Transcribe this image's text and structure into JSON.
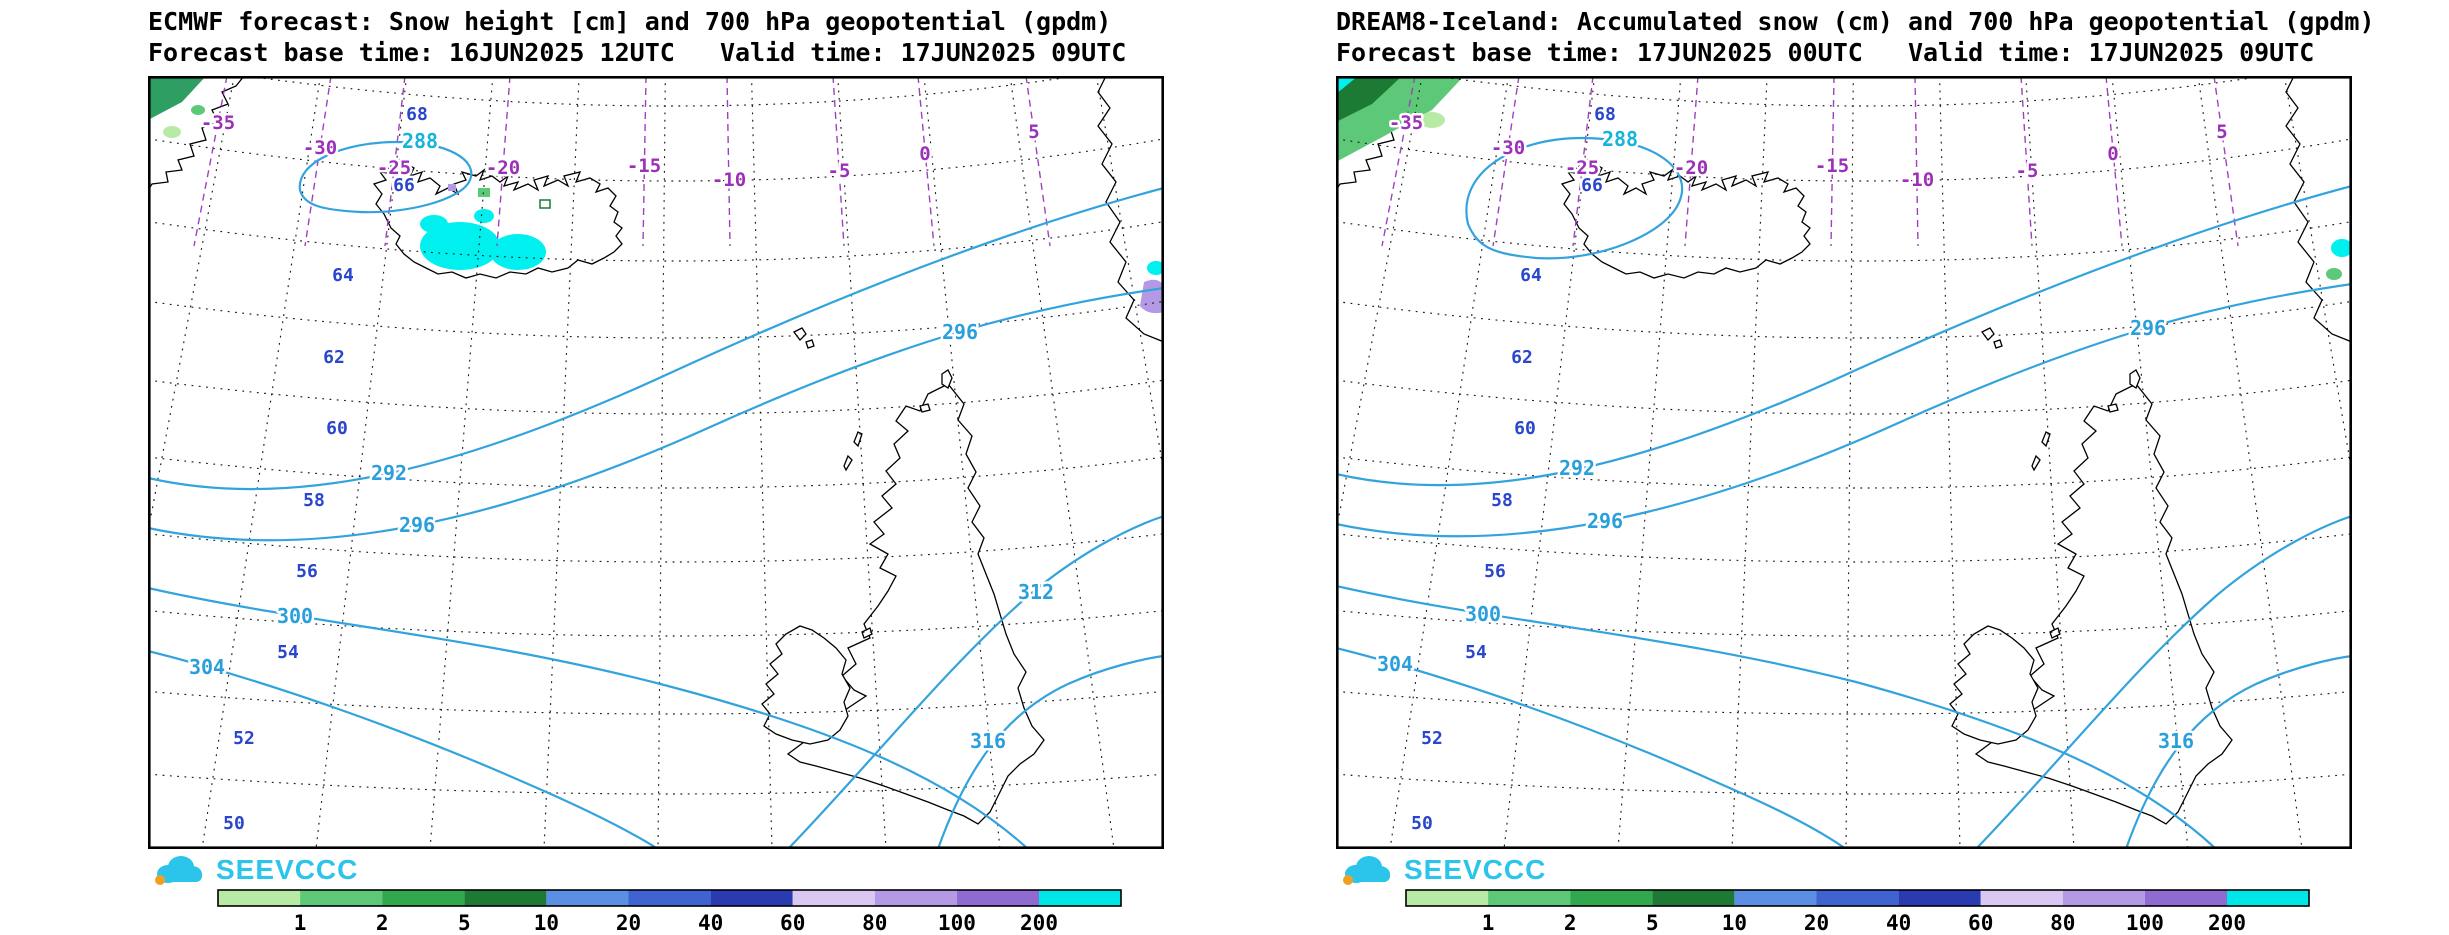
{
  "panels": [
    {
      "title": "ECMWF forecast: Snow height [cm] and 700 hPa geopotential (gpdm)",
      "subtitle": "Forecast base time: 16JUN2025 12UTC   Valid time: 17JUN2025 09UTC"
    },
    {
      "title": "DREAM8-Iceland: Accumulated snow (cm) and 700 hPa geopotential (gpdm)",
      "subtitle": "Forecast base time: 17JUN2025 00UTC   Valid time: 17JUN2025 09UTC"
    }
  ],
  "logo": {
    "text": "SEEVCCC"
  },
  "map_labels": {
    "latitudes": [
      "68",
      "66",
      "64",
      "62",
      "60",
      "58",
      "56",
      "54",
      "52",
      "50"
    ],
    "isotherms": [
      "-35",
      "-30",
      "-25",
      "-20",
      "-15",
      "-10",
      "-5",
      "0",
      "5"
    ],
    "geopotential_left": [
      "288",
      "292",
      "296",
      "296",
      "300",
      "304",
      "312",
      "316"
    ],
    "geopotential_right": [
      "288",
      "292",
      "296",
      "296",
      "300",
      "304",
      "316"
    ]
  },
  "colorbar": {
    "tick_labels": [
      "1",
      "2",
      "5",
      "10",
      "20",
      "40",
      "60",
      "80",
      "100",
      "200"
    ],
    "colors": [
      "#b7eba5",
      "#5dc877",
      "#31a84e",
      "#1d7a35",
      "#5b8fe4",
      "#3f63d1",
      "#2a3ab0",
      "#d9c9f2",
      "#b49ae4",
      "#8e6ad1",
      "#00e5e5"
    ]
  },
  "colors": {
    "contour_blue": "#33a3dd",
    "latitude_label_blue": "#2946cc",
    "isotherm_purple": "#9c30b8",
    "snow_cyan": "#00f0f0",
    "logo_cyan": "#2bc4ea"
  },
  "chart_data": [
    {
      "type": "contour-map",
      "title": "ECMWF forecast: Snow height [cm] and 700 hPa geopotential (gpdm)",
      "region": "North Atlantic: Greenland, Iceland, British Isles, Norway",
      "geopotential_700hPa_gpdm": [
        288,
        292,
        296,
        300,
        304,
        312,
        316
      ],
      "isotherm_labels": [
        -35,
        -30,
        -25,
        -20,
        -15,
        -10,
        -5,
        0,
        5
      ],
      "latitude_lines_degN": [
        68,
        66,
        64,
        62,
        60,
        58,
        56,
        54,
        52,
        50
      ],
      "snow_scale_cm": [
        1,
        2,
        5,
        10,
        20,
        40,
        60,
        80,
        100,
        200
      ],
      "snow_patches": [
        "Iceland glaciers (cyan, >200 cm)",
        "SE Greenland coast (green, 1-10 cm)",
        "Norway coast (purple/cyan patch)"
      ]
    },
    {
      "type": "contour-map",
      "title": "DREAM8-Iceland: Accumulated snow (cm) and 700 hPa geopotential (gpdm)",
      "region": "North Atlantic: Greenland, Iceland, British Isles, Norway",
      "geopotential_700hPa_gpdm": [
        288,
        292,
        296,
        300,
        304,
        316
      ],
      "isotherm_labels": [
        -35,
        -30,
        -25,
        -20,
        -15,
        -10,
        -5,
        0,
        5
      ],
      "latitude_lines_degN": [
        68,
        66,
        64,
        62,
        60,
        58,
        56,
        54,
        52,
        50
      ],
      "snow_scale_cm": [
        1,
        2,
        5,
        10,
        20,
        40,
        60,
        80,
        100,
        200
      ],
      "snow_patches": [
        "SE Greenland coast (green, 1-10 cm)",
        "Norway coast (cyan patch)"
      ]
    }
  ]
}
